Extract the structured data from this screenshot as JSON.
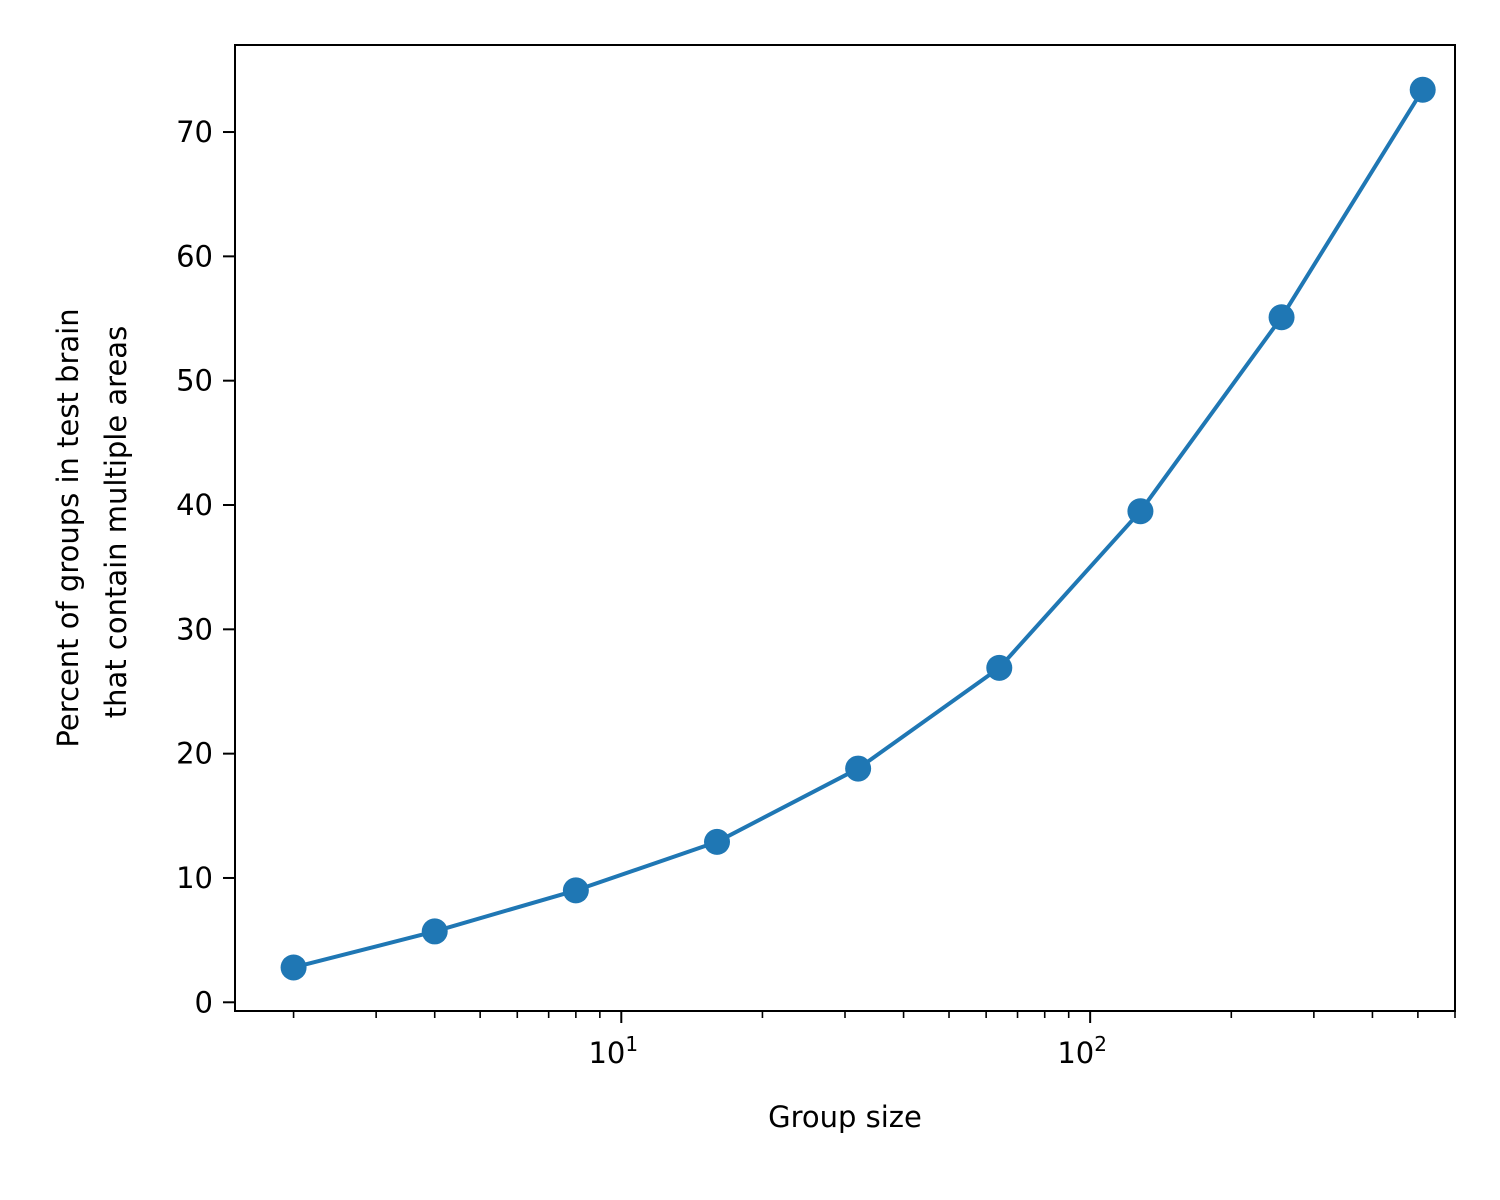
{
  "chart_data": {
    "type": "line",
    "title": "",
    "xlabel": "Group size",
    "ylabel_lines": [
      "Percent of groups in test brain",
      "that contain multiple areas"
    ],
    "x_scale": "log",
    "xlim": [
      1.5,
      600
    ],
    "ylim": [
      -0.7,
      77
    ],
    "x_major_ticks": [
      {
        "value": 10,
        "base": "10",
        "exp": "1"
      },
      {
        "value": 100,
        "base": "10",
        "exp": "2"
      }
    ],
    "y_ticks": [
      0,
      10,
      20,
      30,
      40,
      50,
      60,
      70
    ],
    "grid": false,
    "legend": "none",
    "color": "#1f77b4",
    "series": [
      {
        "x": [
          2,
          4,
          8,
          16,
          32,
          64,
          128,
          256,
          512
        ],
        "y": [
          2.8,
          5.7,
          9.0,
          12.9,
          18.8,
          26.9,
          39.5,
          55.1,
          73.4
        ]
      }
    ]
  }
}
